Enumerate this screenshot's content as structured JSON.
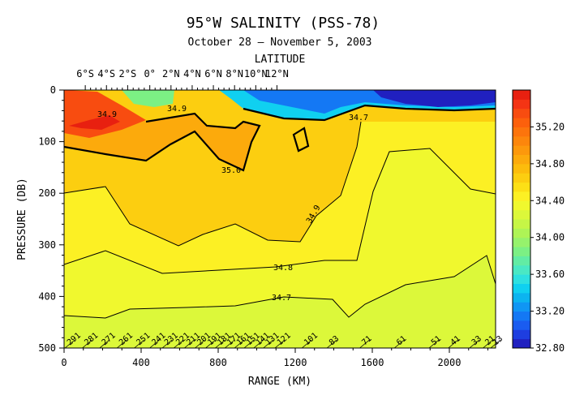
{
  "chart_data": {
    "type": "heatmap",
    "title": "95°W SALINITY (PSS-78)",
    "subtitle": "October 28 – November 5, 2003",
    "xlabel": "RANGE (KM)",
    "ylabel": "PRESSURE (DB)",
    "top_axis_label": "LATITUDE",
    "x_range": [
      0,
      2240
    ],
    "y_range": [
      0,
      500
    ],
    "y_inverted": true,
    "x_ticks": [
      0,
      400,
      800,
      1200,
      1600,
      2000
    ],
    "y_ticks": [
      0,
      100,
      200,
      300,
      400,
      500
    ],
    "latitude_ticks": [
      {
        "label": "6°S",
        "x": 110
      },
      {
        "label": "4°S",
        "x": 220
      },
      {
        "label": "2°S",
        "x": 330
      },
      {
        "label": "0°",
        "x": 445
      },
      {
        "label": "2°N",
        "x": 555
      },
      {
        "label": "4°N",
        "x": 665
      },
      {
        "label": "6°N",
        "x": 775
      },
      {
        "label": "8°N",
        "x": 885
      },
      {
        "label": "10°N",
        "x": 995
      },
      {
        "label": "12°N",
        "x": 1105
      }
    ],
    "colorbar": {
      "range": [
        32.8,
        35.6
      ],
      "step": 0.1,
      "tick_labels": [
        "35.20",
        "34.80",
        "34.40",
        "34.00",
        "33.60",
        "33.20",
        "32.80"
      ],
      "tick_values": [
        35.2,
        34.8,
        34.4,
        34.0,
        33.6,
        33.2,
        32.8
      ]
    },
    "colors": [
      "#2020c0",
      "#1e3ee0",
      "#1a5cf0",
      "#1478f4",
      "#1096f4",
      "#0cb4f0",
      "#10d0f0",
      "#2ee0e0",
      "#4ae8c4",
      "#62eca4",
      "#7cf084",
      "#96f26c",
      "#aef456",
      "#c6f646",
      "#dcf83a",
      "#f0f82e",
      "#fcf024",
      "#fce016",
      "#fcce10",
      "#fcbc0c",
      "#fcaa0c",
      "#fc980c",
      "#fc860c",
      "#fc740c",
      "#fc600c",
      "#f84c10",
      "#f43414",
      "#e82010"
    ],
    "contour_levels": [
      {
        "value": 34.7,
        "label": "34.7"
      },
      {
        "value": 34.8,
        "label": "34.8"
      },
      {
        "value": 34.9,
        "label": "34.9"
      },
      {
        "value": 35.0,
        "label": "35.0"
      }
    ],
    "inline_labels": [
      "34.9",
      "34.9",
      "35.0",
      "34.8",
      "34.7",
      "34.9",
      "34.7"
    ],
    "stations": [
      {
        "label": "291",
        "x": 30
      },
      {
        "label": "281",
        "x": 120
      },
      {
        "label": "271",
        "x": 210
      },
      {
        "label": "261",
        "x": 300
      },
      {
        "label": "251",
        "x": 390
      },
      {
        "label": "241",
        "x": 470
      },
      {
        "label": "231",
        "x": 535
      },
      {
        "label": "221",
        "x": 595
      },
      {
        "label": "211",
        "x": 650
      },
      {
        "label": "201",
        "x": 705
      },
      {
        "label": "191",
        "x": 760
      },
      {
        "label": "181",
        "x": 810
      },
      {
        "label": "171",
        "x": 860
      },
      {
        "label": "161",
        "x": 910
      },
      {
        "label": "151",
        "x": 960
      },
      {
        "label": "141",
        "x": 1010
      },
      {
        "label": "131",
        "x": 1060
      },
      {
        "label": "121",
        "x": 1120
      },
      {
        "label": "101",
        "x": 1260
      },
      {
        "label": "83",
        "x": 1390
      },
      {
        "label": "71",
        "x": 1560
      },
      {
        "label": "61",
        "x": 1740
      },
      {
        "label": "51",
        "x": 1920
      },
      {
        "label": "41",
        "x": 2020
      },
      {
        "label": "33",
        "x": 2130
      },
      {
        "label": "21",
        "x": 2200
      },
      {
        "label": "13",
        "x": 2240
      }
    ]
  }
}
